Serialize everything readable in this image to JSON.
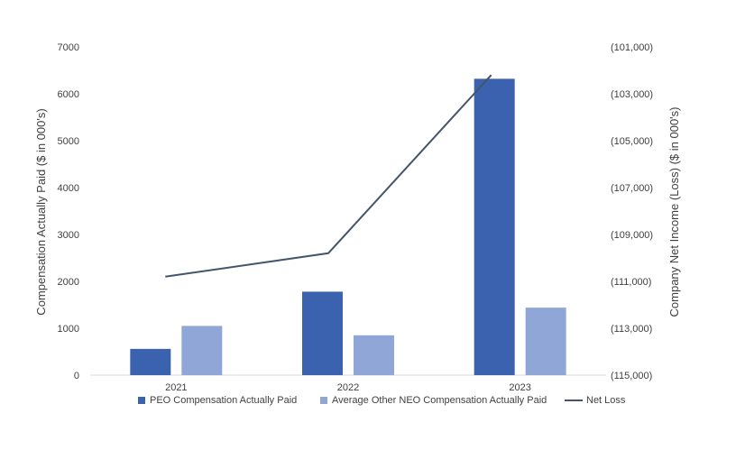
{
  "chart_data": {
    "type": "bar+line",
    "categories": [
      "2021",
      "2022",
      "2023"
    ],
    "series": [
      {
        "name": "PEO Compensation Actually Paid",
        "axis": "left",
        "kind": "bar",
        "values": [
          560,
          1780,
          6320
        ]
      },
      {
        "name": "Average Other NEO Compensation Actually Paid",
        "axis": "left",
        "kind": "bar",
        "values": [
          1050,
          850,
          1440
        ]
      },
      {
        "name": "Net Loss",
        "axis": "right",
        "kind": "line",
        "values": [
          -110800,
          -109800,
          -102200
        ]
      }
    ],
    "ylabel": "Compensation Actually Paid ($ in 000's)",
    "ylabel_right": "Company Net Income (Loss) ($ in 000's)",
    "ylim": [
      0,
      7000
    ],
    "ylim_right": [
      -115000,
      -101000
    ],
    "yticks": [
      "0",
      "1000",
      "2000",
      "3000",
      "4000",
      "5000",
      "6000",
      "7000"
    ],
    "yticks_right": [
      "(115,000)",
      "(113,000)",
      "(111,000)",
      "(109,000)",
      "(107,000)",
      "(105,000)",
      "(103,000)",
      "(101,000)"
    ],
    "legend_position": "bottom",
    "grid": false,
    "colors": {
      "peo": "#3a62ae",
      "neo": "#8fa6d6",
      "line": "#44546a",
      "axis": "#d9d9d9",
      "text": "#404040"
    }
  }
}
